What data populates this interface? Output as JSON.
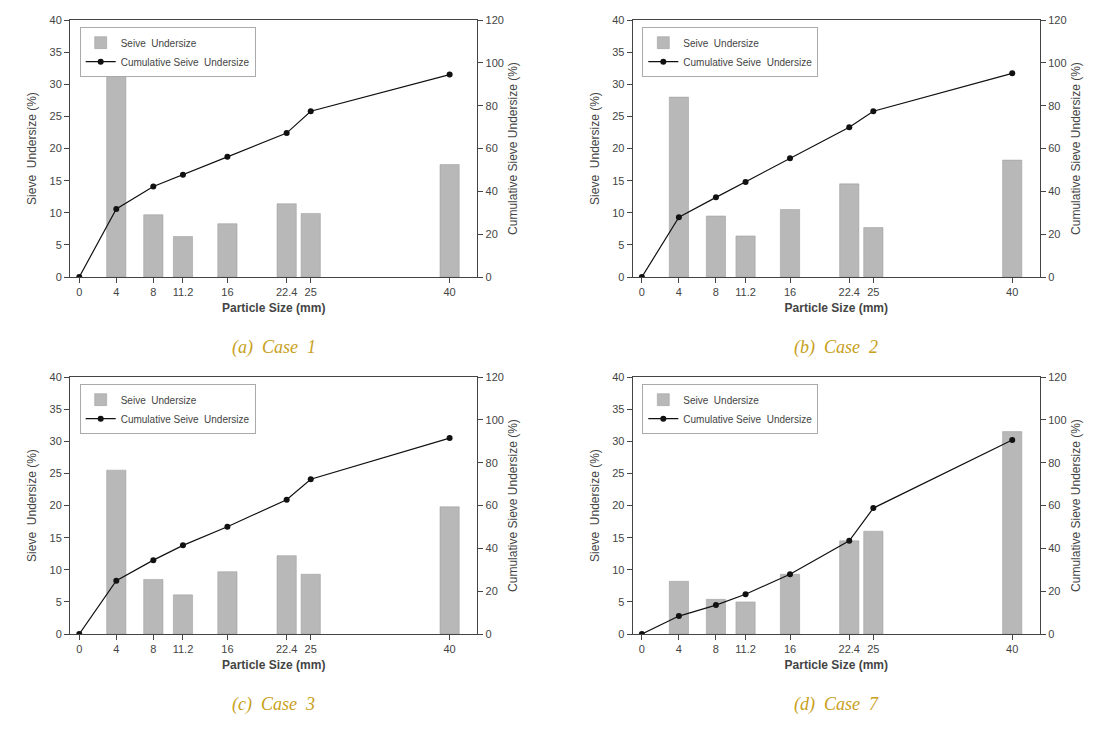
{
  "chart_data": [
    {
      "type": "bar",
      "title": "(a)  Case  1",
      "xlabel": "Particle Size (mm)",
      "ylabel": "Sieve  Undersize (%)",
      "y2label": "Cumulative Sieve Undersize (%)",
      "xlim": [
        -1,
        43
      ],
      "xticks": [
        0,
        4,
        8,
        11.2,
        16,
        22.4,
        25,
        40
      ],
      "ylim": [
        0,
        40
      ],
      "yticks": [
        0,
        5,
        10,
        15,
        20,
        25,
        30,
        35,
        40
      ],
      "y2lim": [
        0,
        120
      ],
      "y2ticks": [
        0,
        20,
        40,
        60,
        80,
        100,
        120
      ],
      "grid": false,
      "legend": "upper left",
      "series": [
        {
          "name": "Seive  Undersize",
          "type": "bar",
          "color": "#b8b8b8",
          "x": [
            4,
            8,
            11.2,
            16,
            22.4,
            25,
            40
          ],
          "values": [
            31.2,
            9.7,
            6.3,
            8.3,
            11.4,
            9.9,
            17.5
          ]
        },
        {
          "name": "Cumulative Seive  Undersize",
          "type": "line",
          "axis": "y2",
          "color": "#111111",
          "marker": "circle",
          "x": [
            0,
            4,
            8,
            11.2,
            16,
            22.4,
            25,
            40
          ],
          "values": [
            0.0,
            31.8,
            42.3,
            47.7,
            56.1,
            67.2,
            77.4,
            94.5
          ]
        }
      ]
    },
    {
      "type": "bar",
      "title": "(b)  Case  2",
      "xlabel": "Particle Size (mm)",
      "ylabel": "Sieve  Undersize (%)",
      "y2label": "Cumulative Sieve Undersize (%)",
      "xlim": [
        -1,
        43
      ],
      "xticks": [
        0,
        4,
        8,
        11.2,
        16,
        22.4,
        25,
        40
      ],
      "ylim": [
        0,
        40
      ],
      "yticks": [
        0,
        5,
        10,
        15,
        20,
        25,
        30,
        35,
        40
      ],
      "y2lim": [
        0,
        120
      ],
      "y2ticks": [
        0,
        20,
        40,
        60,
        80,
        100,
        120
      ],
      "grid": false,
      "legend": "upper left",
      "series": [
        {
          "name": "Seive  Undersize",
          "type": "bar",
          "color": "#b8b8b8",
          "x": [
            4,
            8,
            11.2,
            16,
            22.4,
            25,
            40
          ],
          "values": [
            28.0,
            9.5,
            6.4,
            10.5,
            14.5,
            7.7,
            18.2
          ]
        },
        {
          "name": "Cumulative Seive  Undersize",
          "type": "line",
          "axis": "y2",
          "color": "#111111",
          "marker": "circle",
          "x": [
            0,
            4,
            8,
            11.2,
            16,
            22.4,
            25,
            40
          ],
          "values": [
            0.0,
            27.9,
            37.2,
            44.4,
            55.5,
            69.9,
            77.4,
            95.1
          ]
        }
      ]
    },
    {
      "type": "bar",
      "title": "(c)  Case  3",
      "xlabel": "Particle Size (mm)",
      "ylabel": "Sieve  Undersize (%)",
      "y2label": "Cumulative Sieve Undersize (%)",
      "xlim": [
        -1,
        43
      ],
      "xticks": [
        0,
        4,
        8,
        11.2,
        16,
        22.4,
        25,
        40
      ],
      "ylim": [
        0,
        40
      ],
      "yticks": [
        0,
        5,
        10,
        15,
        20,
        25,
        30,
        35,
        40
      ],
      "y2lim": [
        0,
        120
      ],
      "y2ticks": [
        0,
        20,
        40,
        60,
        80,
        100,
        120
      ],
      "grid": false,
      "legend": "upper left",
      "series": [
        {
          "name": "Seive  Undersize",
          "type": "bar",
          "color": "#b8b8b8",
          "x": [
            4,
            8,
            11.2,
            16,
            22.4,
            25,
            40
          ],
          "values": [
            25.5,
            8.5,
            6.1,
            9.7,
            12.2,
            9.3,
            19.8
          ]
        },
        {
          "name": "Cumulative Seive  Undersize",
          "type": "line",
          "axis": "y2",
          "color": "#111111",
          "marker": "circle",
          "x": [
            0,
            4,
            8,
            11.2,
            16,
            22.4,
            25,
            40
          ],
          "values": [
            0.0,
            24.9,
            34.5,
            41.4,
            50.1,
            62.7,
            72.3,
            91.5
          ]
        }
      ]
    },
    {
      "type": "bar",
      "title": "(d)  Case  7",
      "xlabel": "Particle Size (mm)",
      "ylabel": "Sieve  Undersize (%)",
      "y2label": "Cumulative Sieve Undersize (%)",
      "xlim": [
        -1,
        43
      ],
      "xticks": [
        0,
        4,
        8,
        11.2,
        16,
        22.4,
        25,
        40
      ],
      "ylim": [
        0,
        40
      ],
      "yticks": [
        0,
        5,
        10,
        15,
        20,
        25,
        30,
        35,
        40
      ],
      "y2lim": [
        0,
        120
      ],
      "y2ticks": [
        0,
        20,
        40,
        60,
        80,
        100,
        120
      ],
      "grid": false,
      "legend": "upper left",
      "series": [
        {
          "name": "Seive  Undersize",
          "type": "bar",
          "color": "#b8b8b8",
          "x": [
            4,
            8,
            11.2,
            16,
            22.4,
            25,
            40
          ],
          "values": [
            8.2,
            5.4,
            5.0,
            9.3,
            14.5,
            16.0,
            31.5
          ]
        },
        {
          "name": "Cumulative Seive  Undersize",
          "type": "line",
          "axis": "y2",
          "color": "#111111",
          "marker": "circle",
          "x": [
            0,
            4,
            8,
            11.2,
            16,
            22.4,
            25,
            40
          ],
          "values": [
            0.0,
            8.4,
            13.5,
            18.6,
            27.9,
            43.5,
            58.8,
            90.6
          ]
        }
      ]
    }
  ]
}
